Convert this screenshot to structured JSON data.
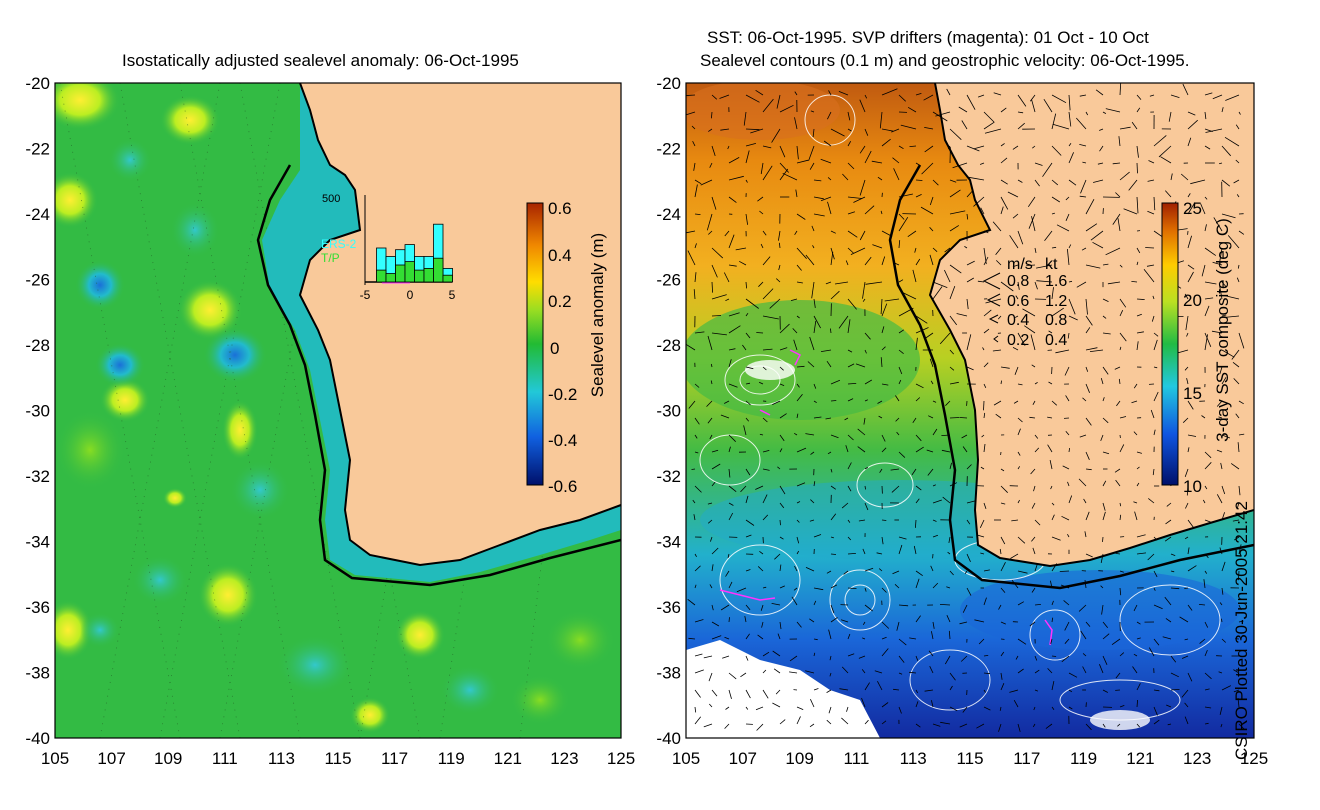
{
  "left_panel": {
    "title": "Isostatically adjusted sealevel anomaly: 06-Oct-1995",
    "colorbar": {
      "label": "Sealevel anomaly (m)",
      "ticks": [
        "0.6",
        "0.4",
        "0.2",
        "0",
        "-0.2",
        "-0.4",
        "-0.6"
      ]
    },
    "inset": {
      "ymax_label": "500",
      "xticks": [
        "-5",
        "0",
        "5"
      ],
      "series": [
        {
          "name": "ERS-2",
          "color": "#33ffff"
        },
        {
          "name": "T/P",
          "color": "#33dd33"
        }
      ],
      "ers2_counts": [
        0,
        200,
        150,
        190,
        220,
        150,
        150,
        340,
        80
      ],
      "tp_counts": [
        0,
        70,
        50,
        100,
        120,
        70,
        80,
        140,
        40
      ]
    }
  },
  "right_panel": {
    "title_line1": "SST: 06-Oct-1995. SVP drifters (magenta): 01 Oct - 10 Oct",
    "title_line2": "Sealevel contours (0.1 m) and geostrophic velocity: 06-Oct-1995.",
    "colorbar": {
      "label": "3-day SST composite (deg C)",
      "ticks": [
        "25",
        "20",
        "15",
        "10"
      ]
    },
    "velocity_legend": {
      "header_ms": "m/s",
      "header_kt": "kt",
      "rows": [
        {
          "ms": "0.8",
          "kt": "1.6"
        },
        {
          "ms": "0.6",
          "kt": "1.2"
        },
        {
          "ms": "0.4",
          "kt": "0.8"
        },
        {
          "ms": "0.2",
          "kt": "0.4"
        }
      ]
    }
  },
  "axes": {
    "lat_labels": [
      "-20",
      "-22",
      "-24",
      "-26",
      "-28",
      "-30",
      "-32",
      "-34",
      "-36",
      "-38",
      "-40"
    ],
    "lon_labels": [
      "105",
      "107",
      "109",
      "111",
      "113",
      "115",
      "117",
      "119",
      "121",
      "123",
      "125"
    ]
  },
  "credit": "CSIRO Plotted 30-Jun-2005 21:42",
  "colors": {
    "land": "#f9c99a",
    "ocean_mid": "#33bb44",
    "coast": "#000000",
    "drifters": "#ff33ff"
  }
}
